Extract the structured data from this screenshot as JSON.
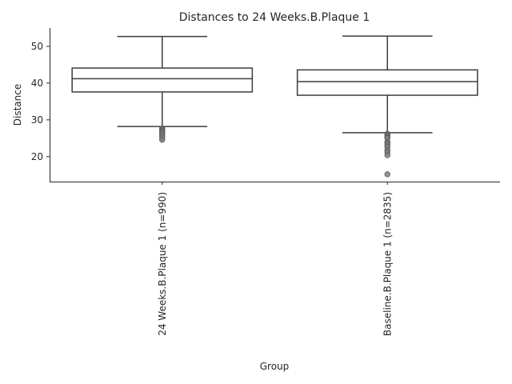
{
  "chart_data": {
    "type": "box",
    "title": "Distances to 24 Weeks.B.Plaque 1",
    "xlabel": "Group",
    "ylabel": "Distance",
    "ylim": [
      13.2,
      55.0
    ],
    "yticks": [
      20,
      30,
      40,
      50
    ],
    "categories": [
      "24 Weeks.B.Plaque 1 (n=990)",
      "Baseline.B.Plaque 1 (n=2835)"
    ],
    "boxes": [
      {
        "category": "24 Weeks.B.Plaque 1 (n=990)",
        "whisker_low": 28.2,
        "q1": 37.6,
        "median": 41.2,
        "q3": 44.1,
        "whisker_high": 52.7,
        "outliers": [
          27.7,
          27.4,
          27.1,
          26.8,
          26.5,
          26.1,
          25.6,
          25.1,
          24.6
        ]
      },
      {
        "category": "Baseline.B.Plaque 1 (n=2835)",
        "whisker_low": 26.5,
        "q1": 36.7,
        "median": 40.4,
        "q3": 43.6,
        "whisker_high": 52.8,
        "outliers": [
          26.2,
          25.9,
          25.6,
          25.3,
          25.0,
          24.0,
          23.7,
          23.2,
          22.7,
          21.8,
          21.2,
          20.4,
          15.2
        ]
      }
    ],
    "colors": {
      "line": "#3d3d3d",
      "outlier": "#7f7f7f",
      "axis": "#262626"
    },
    "grid": false
  }
}
